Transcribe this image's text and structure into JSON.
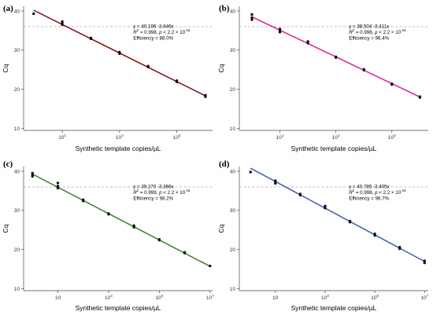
{
  "chart_data": [
    {
      "panel": "(a)",
      "type": "scatter",
      "xlabel": "Synthetic template copies/µL",
      "ylabel": "Cq",
      "x_scale": "log10",
      "ylim": [
        10,
        40
      ],
      "y_ticks": [
        10,
        20,
        30,
        40
      ],
      "x_tick_labels": [
        "10^1",
        "10^3",
        "10^5"
      ],
      "threshold_y": 36,
      "line_color": "#7a0f12",
      "points": [
        {
          "x": 1,
          "y": 39.3
        },
        {
          "x": 10,
          "y": 37.3
        },
        {
          "x": 10,
          "y": 36.8
        },
        {
          "x": 10,
          "y": 36.5
        },
        {
          "x": 100,
          "y": 33.1
        },
        {
          "x": 100,
          "y": 32.9
        },
        {
          "x": 1000,
          "y": 29.5
        },
        {
          "x": 1000,
          "y": 29.1
        },
        {
          "x": 10000,
          "y": 25.9
        },
        {
          "x": 10000,
          "y": 25.7
        },
        {
          "x": 100000,
          "y": 22.2
        },
        {
          "x": 100000,
          "y": 21.9
        },
        {
          "x": 1000000,
          "y": 18.5
        },
        {
          "x": 1000000,
          "y": 18.1
        }
      ],
      "fit": {
        "intercept": 40.196,
        "slope": -3.646,
        "x_range": [
          1,
          1000000
        ]
      },
      "annotation": {
        "equation": "y = 40.196 -3.646x",
        "r2_prefix": "R",
        "r2_exp": "2",
        "r2_text": " = 0.998, ",
        "p_text": "p",
        "p_rest": " < 2.2 × 10",
        "p_exp": "-16",
        "efficiency": "Efficiency = 88.0%"
      }
    },
    {
      "panel": "(b)",
      "type": "scatter",
      "xlabel": "Synthetic template copies/µL",
      "ylabel": "Cq",
      "x_scale": "log10",
      "ylim": [
        10,
        40
      ],
      "y_ticks": [
        10,
        20,
        30,
        40
      ],
      "x_tick_labels": [
        "10^1",
        "10^3",
        "10^5"
      ],
      "threshold_y": 36,
      "line_color": "#e5198f",
      "points": [
        {
          "x": 1,
          "y": 39.1
        },
        {
          "x": 1,
          "y": 38.3
        },
        {
          "x": 1,
          "y": 37.8
        },
        {
          "x": 10,
          "y": 35.4
        },
        {
          "x": 10,
          "y": 34.9
        },
        {
          "x": 10,
          "y": 34.6
        },
        {
          "x": 100,
          "y": 32.2
        },
        {
          "x": 100,
          "y": 31.8
        },
        {
          "x": 1000,
          "y": 28.3
        },
        {
          "x": 1000,
          "y": 28.1
        },
        {
          "x": 10000,
          "y": 25.1
        },
        {
          "x": 10000,
          "y": 24.9
        },
        {
          "x": 100000,
          "y": 21.4
        },
        {
          "x": 100000,
          "y": 21.2
        },
        {
          "x": 1000000,
          "y": 18.1
        },
        {
          "x": 1000000,
          "y": 17.9
        }
      ],
      "fit": {
        "intercept": 38.504,
        "slope": -3.411,
        "x_range": [
          1,
          1000000
        ]
      },
      "annotation": {
        "equation": "y = 38.504 -3.411x",
        "r2_prefix": "R",
        "r2_exp": "2",
        "r2_text": " = 0.998, ",
        "p_text": "p",
        "p_rest": " < 2.2 × 10",
        "p_exp": "-16",
        "efficiency": "Efficiency = 96.4%"
      }
    },
    {
      "panel": "(c)",
      "type": "scatter",
      "xlabel": "Synthetic template copies/µL",
      "ylabel": "Cq",
      "x_scale": "log10",
      "ylim": [
        10,
        40
      ],
      "y_ticks": [
        10,
        20,
        30,
        40
      ],
      "x_tick_labels": [
        "10",
        "10^3",
        "10^5",
        "10^7"
      ],
      "threshold_y": 36,
      "line_color": "#3f7b2e",
      "points": [
        {
          "x": 1,
          "y": 39.5
        },
        {
          "x": 1,
          "y": 39.0
        },
        {
          "x": 1,
          "y": 38.7
        },
        {
          "x": 10,
          "y": 37.0
        },
        {
          "x": 10,
          "y": 36.2
        },
        {
          "x": 10,
          "y": 35.7
        },
        {
          "x": 100,
          "y": 32.7
        },
        {
          "x": 100,
          "y": 32.4
        },
        {
          "x": 1000,
          "y": 29.2
        },
        {
          "x": 1000,
          "y": 29.0
        },
        {
          "x": 10000,
          "y": 26.1
        },
        {
          "x": 10000,
          "y": 25.7
        },
        {
          "x": 100000,
          "y": 22.6
        },
        {
          "x": 100000,
          "y": 22.4
        },
        {
          "x": 1000000,
          "y": 19.3
        },
        {
          "x": 1000000,
          "y": 19.1
        },
        {
          "x": 10000000,
          "y": 15.8
        }
      ],
      "fit": {
        "intercept": 39.27,
        "slope": -3.366,
        "x_range": [
          1,
          10000000
        ]
      },
      "annotation": {
        "equation": "y = 39.270 -3.366x",
        "r2_prefix": "R",
        "r2_exp": "2",
        "r2_text": " = 0.999, ",
        "p_text": "p",
        "p_rest": " < 2.2 × 10",
        "p_exp": "-16",
        "efficiency": "Efficiency = 98.2%"
      }
    },
    {
      "panel": "(d)",
      "type": "scatter",
      "xlabel": "Synthetic template copies/µL",
      "ylabel": "Cq",
      "x_scale": "log10",
      "ylim": [
        10,
        40
      ],
      "y_ticks": [
        10,
        20,
        30,
        40
      ],
      "x_tick_labels": [
        "10",
        "10^3",
        "10^5",
        "10^7"
      ],
      "threshold_y": 36,
      "line_color": "#3b62a8",
      "points": [
        {
          "x": 1,
          "y": 39.8
        },
        {
          "x": 10,
          "y": 37.6
        },
        {
          "x": 10,
          "y": 37.2
        },
        {
          "x": 10,
          "y": 36.9
        },
        {
          "x": 100,
          "y": 34.2
        },
        {
          "x": 100,
          "y": 33.9
        },
        {
          "x": 1000,
          "y": 31.1
        },
        {
          "x": 1000,
          "y": 30.6
        },
        {
          "x": 10000,
          "y": 27.3
        },
        {
          "x": 10000,
          "y": 27.0
        },
        {
          "x": 100000,
          "y": 24.0
        },
        {
          "x": 100000,
          "y": 23.6
        },
        {
          "x": 1000000,
          "y": 20.6
        },
        {
          "x": 1000000,
          "y": 20.2
        },
        {
          "x": 10000000,
          "y": 17.1
        },
        {
          "x": 10000000,
          "y": 16.6
        }
      ],
      "fit": {
        "intercept": 40.785,
        "slope": -3.405,
        "x_range": [
          1,
          10000000
        ]
      },
      "annotation": {
        "equation": "y = 40.785 -3.405x",
        "r2_prefix": "R",
        "r2_exp": "2",
        "r2_text": " = 0.998, ",
        "p_text": "p",
        "p_rest": " < 2.2 × 10",
        "p_exp": "-16",
        "efficiency": "Efficiency = 96.7%"
      }
    }
  ]
}
